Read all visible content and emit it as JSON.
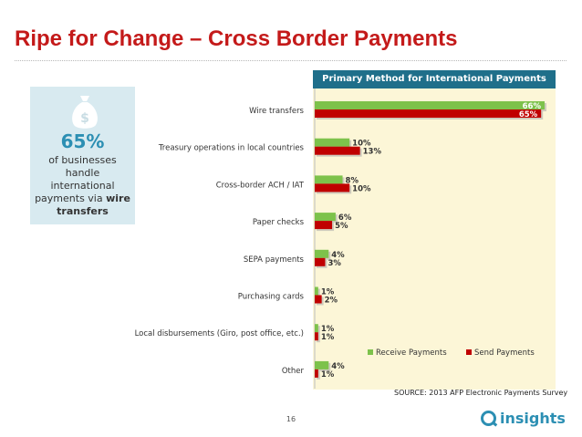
{
  "title": "Ripe for Change – Cross Border Payments",
  "stat_box": {
    "value": "65%",
    "line1": "of businesses",
    "line2": "handle",
    "line3": "international",
    "line4_pre": "payments via ",
    "line4_bold": "wire",
    "line5_bold": "transfers",
    "icon": "money-bag-icon"
  },
  "source": "SOURCE: 2013 AFP Electronic Payments Survey",
  "page_number": "16",
  "logo_text": "insights",
  "colors": {
    "title": "#c41a1a",
    "receive": "#7dc24b",
    "send": "#c00000",
    "header": "#1f6f8a",
    "panel": "#fcf6d7",
    "accent": "#2c8fb3"
  },
  "chart_data": {
    "type": "bar",
    "orientation": "horizontal",
    "title": "Primary Method for International Payments",
    "categories": [
      "Wire transfers",
      "Treasury operations in local countries",
      "Cross-border ACH / IAT",
      "Paper checks",
      "SEPA payments",
      "Purchasing cards",
      "Local disbursements (Giro, post office, etc.)",
      "Other"
    ],
    "series": [
      {
        "name": "Receive Payments",
        "values": [
          66,
          10,
          8,
          6,
          4,
          1,
          1,
          4
        ],
        "labels": [
          "66%",
          "10%",
          "8%",
          "6%",
          "4%",
          "1%",
          "1%",
          "4%"
        ]
      },
      {
        "name": "Send Payments",
        "values": [
          65,
          13,
          10,
          5,
          3,
          2,
          1,
          1
        ],
        "labels": [
          "65%",
          "13%",
          "10%",
          "5%",
          "3%",
          "2%",
          "1%",
          "1%"
        ]
      }
    ],
    "xlim": [
      0,
      66
    ],
    "legend_position": "bottom-right",
    "grid": false
  }
}
